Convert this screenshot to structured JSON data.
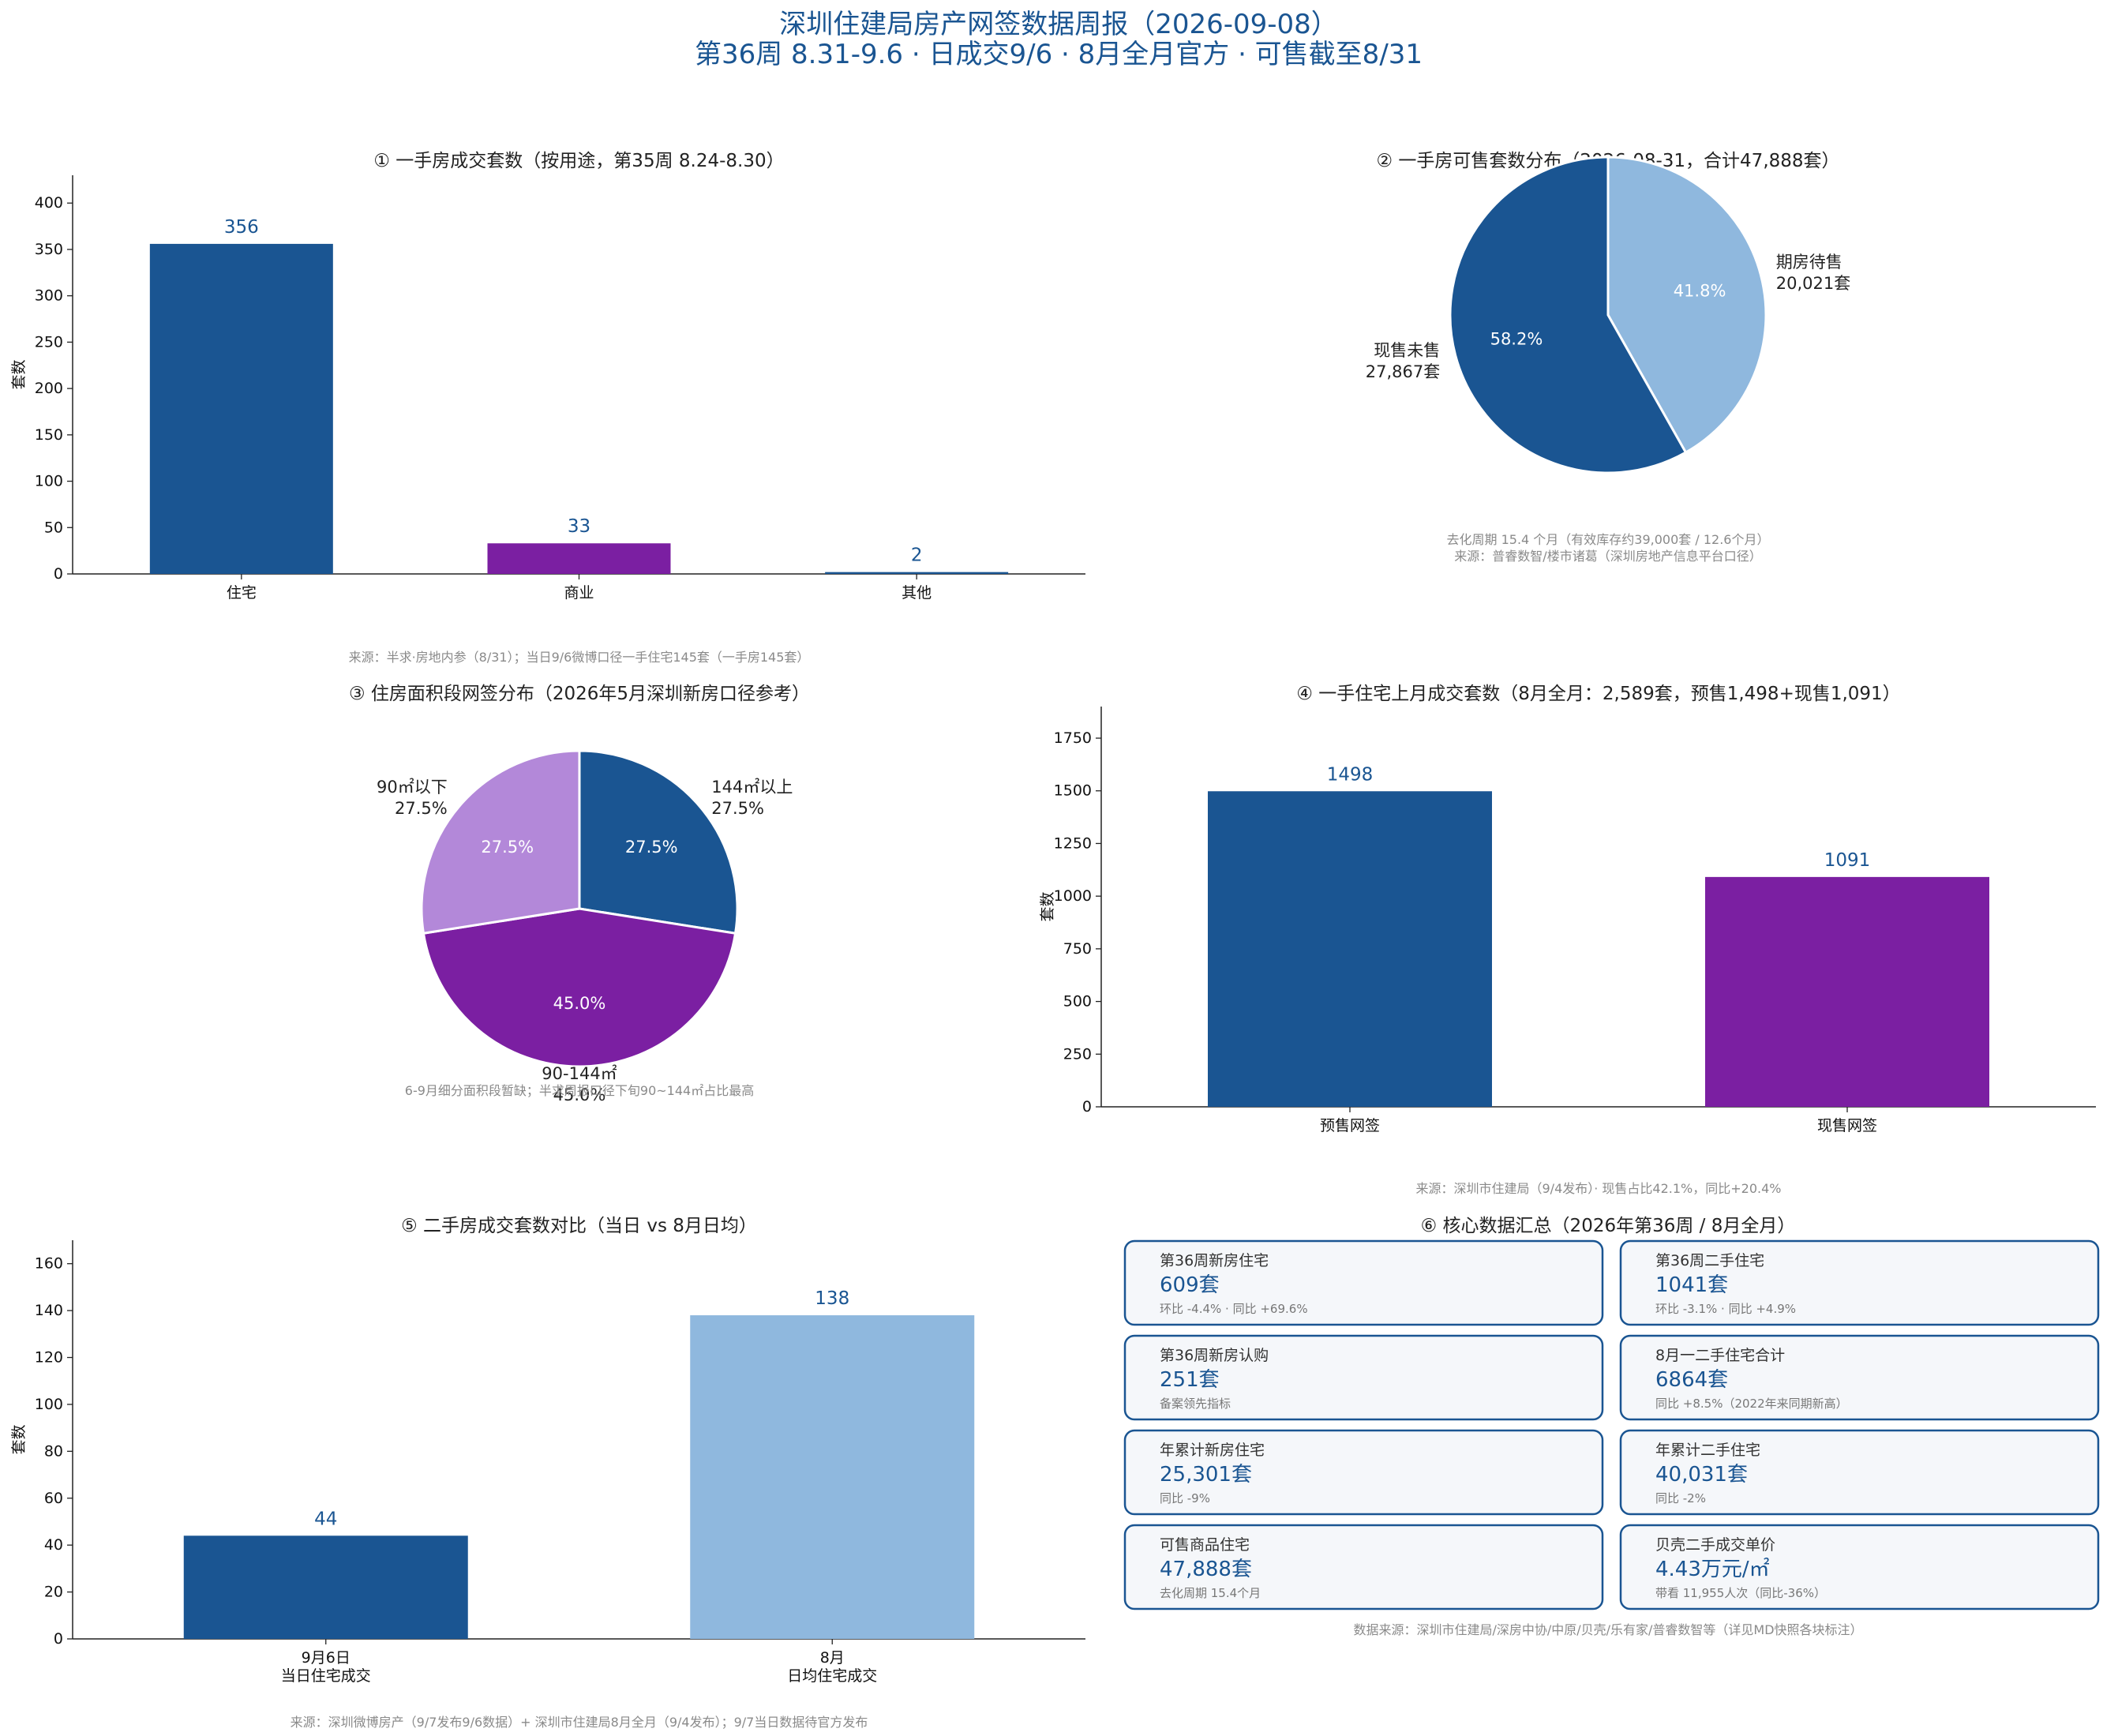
{
  "header": {
    "title": "深圳住建局房产网签数据周报（2026-09-08）",
    "subtitle": "第36周 8.31-9.6 · 日成交9/6 · 8月全月官方 · 可售截至8/31"
  },
  "colors": {
    "navy": "#1a5592",
    "purple": "#7b1fa2",
    "lightblue": "#8fb8de",
    "lavender": "#b388d9"
  },
  "chart_data": [
    {
      "type": "bar",
      "title": "① 一手房成交套数（按用途，第35周 8.24-8.30）",
      "categories": [
        "住宅",
        "商业",
        "其他"
      ],
      "values": [
        356,
        33,
        2
      ],
      "colors": [
        "#1a5592",
        "#7b1fa2",
        "#1a5592"
      ],
      "ylabel": "套数",
      "ylim": [
        0,
        430
      ],
      "yticks": [
        0,
        50,
        100,
        150,
        200,
        250,
        300,
        350,
        400
      ],
      "source": "来源：半求·房地内参（8/31）；当日9/6微博口径一手住宅145套（一手房145套）"
    },
    {
      "type": "pie",
      "title": "② 一手房可售套数分布（2026-08-31，合计47,888套）",
      "slices": [
        {
          "label": "期房待售",
          "value": 20021,
          "value_text": "20,021套",
          "pct": "41.8%",
          "color": "#8fb8de"
        },
        {
          "label": "现售未售",
          "value": 27867,
          "value_text": "27,867套",
          "pct": "58.2%",
          "color": "#1a5592"
        }
      ],
      "notes": [
        "去化周期 15.4 个月（有效库存约39,000套 / 12.6个月）",
        "来源：普睿数智/楼市诸葛（深圳房地产信息平台口径）"
      ]
    },
    {
      "type": "pie",
      "title": "③ 住房面积段网签分布（2026年5月深圳新房口径参考）",
      "slices": [
        {
          "label": "144㎡以上",
          "value": 27.5,
          "pct": "27.5%",
          "color": "#1a5592"
        },
        {
          "label": "90-144㎡",
          "value": 45.0,
          "pct": "45.0%",
          "color": "#7b1fa2"
        },
        {
          "label": "90㎡以下",
          "value": 27.5,
          "pct": "27.5%",
          "color": "#b388d9"
        }
      ],
      "note": "6-9月细分面积段暂缺；半求周报口径下旬90~144㎡占比最高"
    },
    {
      "type": "bar",
      "title": "④ 一手住宅上月成交套数（8月全月：2,589套，预售1,498+现售1,091）",
      "categories": [
        "预售网签",
        "现售网签"
      ],
      "values": [
        1498,
        1091
      ],
      "colors": [
        "#1a5592",
        "#7b1fa2"
      ],
      "ylabel": "套数",
      "ylim": [
        0,
        1900
      ],
      "yticks": [
        0,
        250,
        500,
        750,
        1000,
        1250,
        1500,
        1750
      ],
      "source": "来源：深圳市住建局（9/4发布）· 现售占比42.1%，同比+20.4%"
    },
    {
      "type": "bar",
      "title": "⑤ 二手房成交套数对比（当日 vs 8月日均）",
      "categories": [
        "9月6日|当日住宅成交",
        "8月|日均住宅成交"
      ],
      "values": [
        44,
        138
      ],
      "colors": [
        "#1a5592",
        "#8fb8de"
      ],
      "ylabel": "套数",
      "ylim": [
        0,
        170
      ],
      "yticks": [
        0,
        20,
        40,
        60,
        80,
        100,
        120,
        140,
        160
      ],
      "source": "来源：深圳微博房产（9/7发布9/6数据）+ 深圳市住建局8月全月（9/4发布）；9/7当日数据待官方发布"
    },
    {
      "type": "table",
      "title": "⑥ 核心数据汇总（2026年第36周 / 8月全月）",
      "cards": [
        {
          "label": "第36周新房住宅",
          "value": "609套",
          "sub": "环比 -4.4% · 同比 +69.6%"
        },
        {
          "label": "第36周二手住宅",
          "value": "1041套",
          "sub": "环比 -3.1% · 同比 +4.9%"
        },
        {
          "label": "第36周新房认购",
          "value": "251套",
          "sub": "备案领先指标"
        },
        {
          "label": "8月一二手住宅合计",
          "value": "6864套",
          "sub": "同比 +8.5%（2022年来同期新高）"
        },
        {
          "label": "年累计新房住宅",
          "value": "25,301套",
          "sub": "同比 -9%"
        },
        {
          "label": "年累计二手住宅",
          "value": "40,031套",
          "sub": "同比 -2%"
        },
        {
          "label": "可售商品住宅",
          "value": "47,888套",
          "sub": "去化周期 15.4个月"
        },
        {
          "label": "贝壳二手成交单价",
          "value": "4.43万元/㎡",
          "sub": "带看 11,955人次（同比-36%）"
        }
      ],
      "source": "数据来源：深圳市住建局/深房中协/中原/贝壳/乐有家/普睿数智等（详见MD快照各块标注）"
    }
  ]
}
